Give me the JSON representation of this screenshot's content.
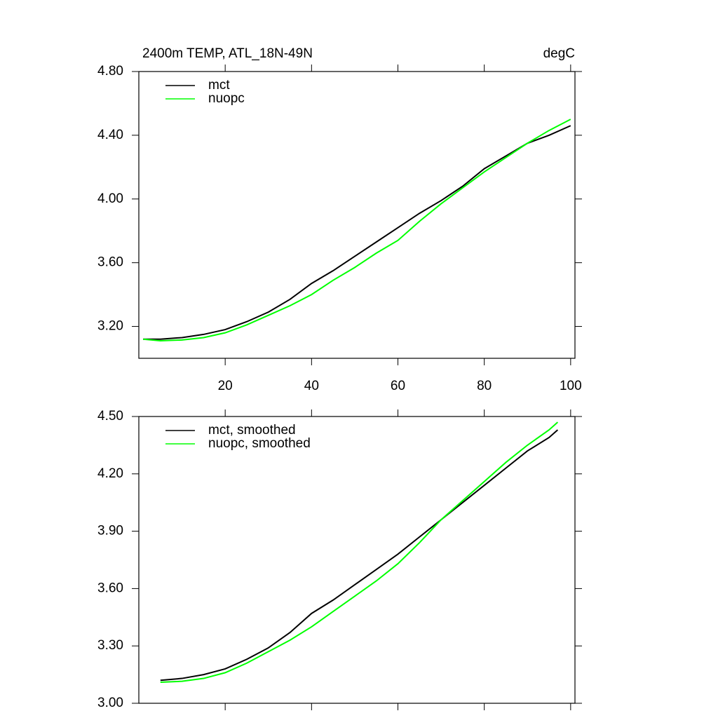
{
  "chart_data": [
    {
      "type": "line",
      "title": "2400m TEMP, ATL_18N-49N",
      "units": "degC",
      "x": [
        1,
        5,
        10,
        15,
        20,
        25,
        30,
        35,
        40,
        45,
        50,
        55,
        60,
        65,
        70,
        75,
        80,
        85,
        90,
        95,
        100
      ],
      "series": [
        {
          "name": "mct",
          "color": "#000000",
          "values": [
            3.12,
            3.12,
            3.13,
            3.15,
            3.18,
            3.23,
            3.29,
            3.37,
            3.47,
            3.55,
            3.64,
            3.73,
            3.82,
            3.91,
            3.99,
            4.08,
            4.19,
            4.27,
            4.35,
            4.4,
            4.46
          ]
        },
        {
          "name": "nuopc",
          "color": "#00ff00",
          "values": [
            3.12,
            3.11,
            3.115,
            3.13,
            3.16,
            3.21,
            3.27,
            3.33,
            3.4,
            3.49,
            3.57,
            3.66,
            3.74,
            3.86,
            3.97,
            4.07,
            4.17,
            4.26,
            4.35,
            4.43,
            4.5
          ]
        }
      ],
      "xlim": [
        0,
        101
      ],
      "xticks": [
        20,
        40,
        60,
        80,
        100
      ],
      "xtick_labels": true,
      "ylim": [
        3.0,
        4.8
      ],
      "yticks": [
        {
          "value": 3.2,
          "label": "3.20"
        },
        {
          "value": 3.6,
          "label": "3.60"
        },
        {
          "value": 4.0,
          "label": "4.00"
        },
        {
          "value": 4.4,
          "label": "4.40"
        },
        {
          "value": 4.8,
          "label": "4.80"
        }
      ]
    },
    {
      "type": "line",
      "x": [
        5,
        10,
        15,
        20,
        25,
        30,
        35,
        40,
        45,
        50,
        55,
        60,
        65,
        70,
        75,
        80,
        85,
        90,
        95,
        97
      ],
      "series": [
        {
          "name": "mct, smoothed",
          "color": "#000000",
          "values": [
            3.12,
            3.13,
            3.15,
            3.18,
            3.23,
            3.29,
            3.37,
            3.47,
            3.54,
            3.62,
            3.7,
            3.78,
            3.87,
            3.96,
            4.05,
            4.14,
            4.23,
            4.32,
            4.39,
            4.43
          ]
        },
        {
          "name": "nuopc, smoothed",
          "color": "#00ff00",
          "values": [
            3.11,
            3.115,
            3.13,
            3.16,
            3.21,
            3.27,
            3.33,
            3.4,
            3.48,
            3.56,
            3.64,
            3.73,
            3.84,
            3.96,
            4.06,
            4.16,
            4.26,
            4.35,
            4.43,
            4.47
          ]
        }
      ],
      "xlim": [
        0,
        101
      ],
      "xticks": [
        20,
        40,
        60,
        80,
        100
      ],
      "xtick_labels": false,
      "ylim": [
        3.0,
        4.5
      ],
      "yticks": [
        {
          "value": 3.0,
          "label": "3.00"
        },
        {
          "value": 3.3,
          "label": "3.30"
        },
        {
          "value": 3.6,
          "label": "3.60"
        },
        {
          "value": 3.9,
          "label": "3.90"
        },
        {
          "value": 4.2,
          "label": "4.20"
        },
        {
          "value": 4.5,
          "label": "4.50"
        }
      ]
    }
  ]
}
